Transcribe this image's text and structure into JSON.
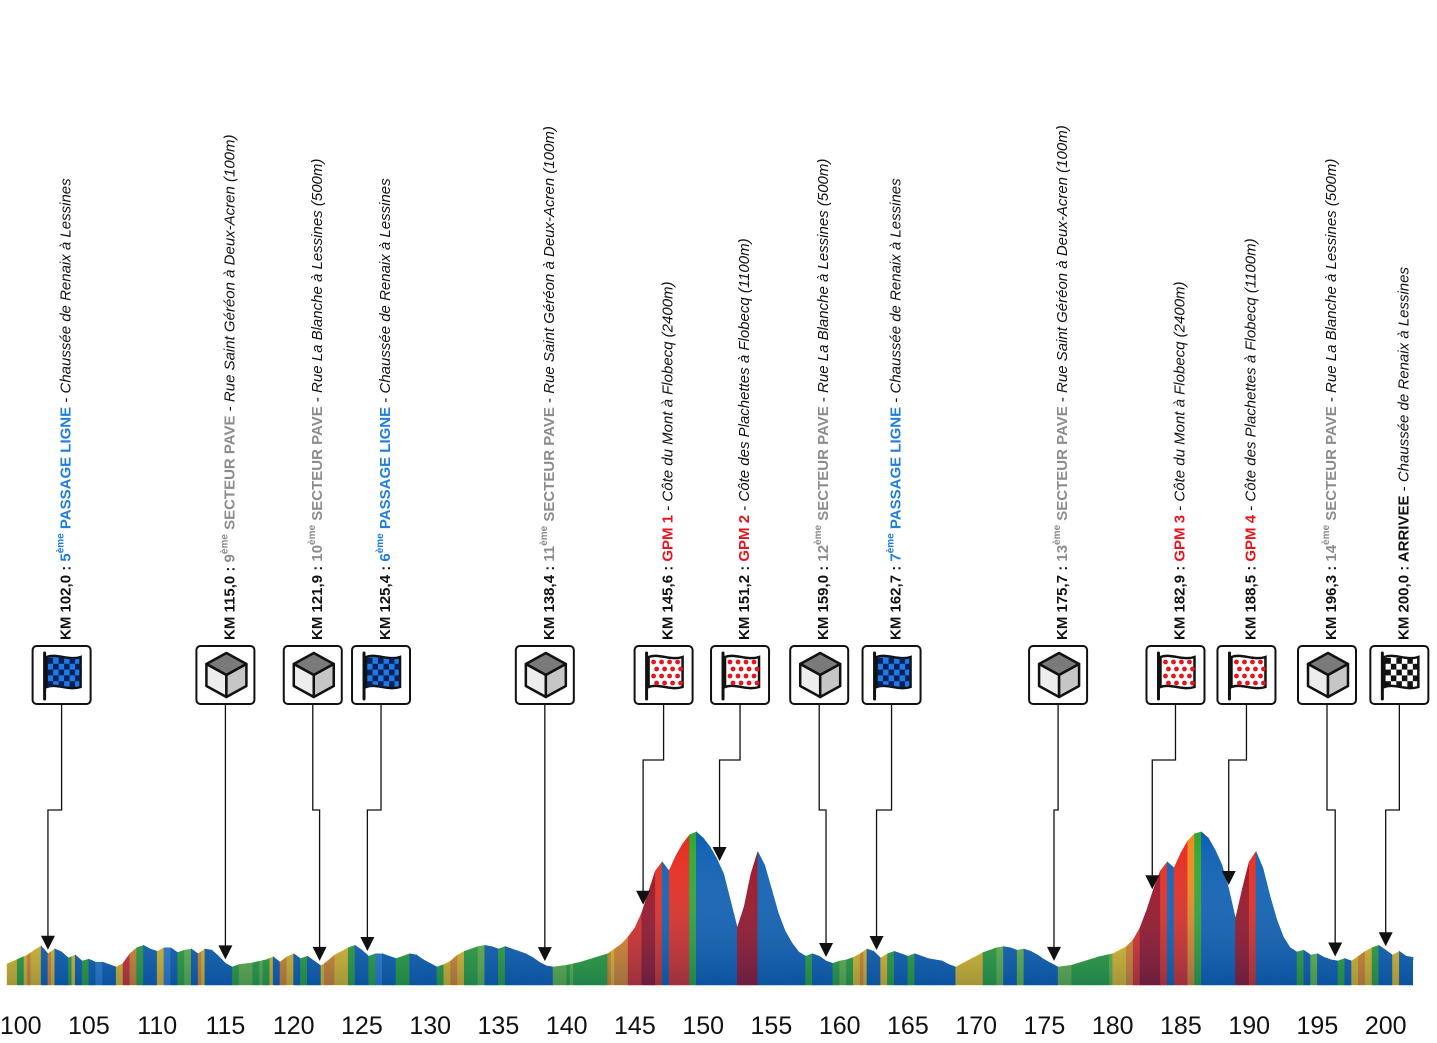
{
  "chart_data": {
    "type": "area",
    "title": "",
    "xlabel": "",
    "ylabel": "",
    "xlim": [
      99,
      202
    ],
    "x_ticks": [
      100,
      105,
      110,
      115,
      120,
      125,
      130,
      135,
      140,
      145,
      150,
      155,
      160,
      165,
      170,
      175,
      180,
      185,
      190,
      195,
      200
    ],
    "profile_note": "elevation shown by a coloured gradient profile (colours = gradient), no vertical axis",
    "profile": [
      [
        99.0,
        0.35
      ],
      [
        99.5,
        0.4
      ],
      [
        100.0,
        0.45
      ],
      [
        100.5,
        0.5
      ],
      [
        101.0,
        0.58
      ],
      [
        101.5,
        0.65
      ],
      [
        102.0,
        0.52
      ],
      [
        102.5,
        0.6
      ],
      [
        103.0,
        0.55
      ],
      [
        103.5,
        0.45
      ],
      [
        104.0,
        0.5
      ],
      [
        104.5,
        0.4
      ],
      [
        105.0,
        0.43
      ],
      [
        105.5,
        0.38
      ],
      [
        106.0,
        0.38
      ],
      [
        106.5,
        0.34
      ],
      [
        107.0,
        0.3
      ],
      [
        107.5,
        0.36
      ],
      [
        108.0,
        0.52
      ],
      [
        108.5,
        0.62
      ],
      [
        109.0,
        0.66
      ],
      [
        109.5,
        0.6
      ],
      [
        110.0,
        0.56
      ],
      [
        110.5,
        0.62
      ],
      [
        111.0,
        0.62
      ],
      [
        111.5,
        0.54
      ],
      [
        112.0,
        0.58
      ],
      [
        112.5,
        0.6
      ],
      [
        113.0,
        0.52
      ],
      [
        113.5,
        0.6
      ],
      [
        114.0,
        0.58
      ],
      [
        114.5,
        0.48
      ],
      [
        115.0,
        0.36
      ],
      [
        115.5,
        0.3
      ],
      [
        116.0,
        0.34
      ],
      [
        117.0,
        0.37
      ],
      [
        118.0,
        0.42
      ],
      [
        118.5,
        0.47
      ],
      [
        119.0,
        0.38
      ],
      [
        119.5,
        0.47
      ],
      [
        120.0,
        0.52
      ],
      [
        120.5,
        0.44
      ],
      [
        121.0,
        0.48
      ],
      [
        121.5,
        0.4
      ],
      [
        122.0,
        0.32
      ],
      [
        122.5,
        0.4
      ],
      [
        123.0,
        0.5
      ],
      [
        123.5,
        0.56
      ],
      [
        124.0,
        0.62
      ],
      [
        124.5,
        0.66
      ],
      [
        125.0,
        0.58
      ],
      [
        125.5,
        0.48
      ],
      [
        126.0,
        0.52
      ],
      [
        126.5,
        0.52
      ],
      [
        127.0,
        0.48
      ],
      [
        127.5,
        0.44
      ],
      [
        128.0,
        0.48
      ],
      [
        128.5,
        0.52
      ],
      [
        129.0,
        0.5
      ],
      [
        129.5,
        0.42
      ],
      [
        130.0,
        0.36
      ],
      [
        130.5,
        0.3
      ],
      [
        131.0,
        0.34
      ],
      [
        131.5,
        0.4
      ],
      [
        132.0,
        0.5
      ],
      [
        132.5,
        0.56
      ],
      [
        133.0,
        0.6
      ],
      [
        133.5,
        0.64
      ],
      [
        134.0,
        0.66
      ],
      [
        134.5,
        0.64
      ],
      [
        135.0,
        0.6
      ],
      [
        135.5,
        0.64
      ],
      [
        136.0,
        0.6
      ],
      [
        136.5,
        0.56
      ],
      [
        137.0,
        0.52
      ],
      [
        137.5,
        0.46
      ],
      [
        138.0,
        0.38
      ],
      [
        138.5,
        0.32
      ],
      [
        139.0,
        0.3
      ],
      [
        140.0,
        0.33
      ],
      [
        141.0,
        0.38
      ],
      [
        142.0,
        0.45
      ],
      [
        143.0,
        0.52
      ],
      [
        143.5,
        0.6
      ],
      [
        144.0,
        0.68
      ],
      [
        144.5,
        0.8
      ],
      [
        145.0,
        0.95
      ],
      [
        145.5,
        1.2
      ],
      [
        146.0,
        1.55
      ],
      [
        146.5,
        1.9
      ],
      [
        147.0,
        2.05
      ],
      [
        147.5,
        1.9
      ],
      [
        148.0,
        2.15
      ],
      [
        148.5,
        2.35
      ],
      [
        149.0,
        2.5
      ],
      [
        149.5,
        2.55
      ],
      [
        150.0,
        2.45
      ],
      [
        150.5,
        2.3
      ],
      [
        151.0,
        2.1
      ],
      [
        151.5,
        1.85
      ],
      [
        152.0,
        1.4
      ],
      [
        152.5,
        0.95
      ],
      [
        153.0,
        1.3
      ],
      [
        153.5,
        1.85
      ],
      [
        154.0,
        2.22
      ],
      [
        154.5,
        2.0
      ],
      [
        155.0,
        1.6
      ],
      [
        155.5,
        1.2
      ],
      [
        156.0,
        0.9
      ],
      [
        156.5,
        0.7
      ],
      [
        157.0,
        0.55
      ],
      [
        157.5,
        0.48
      ],
      [
        158.0,
        0.52
      ],
      [
        158.5,
        0.48
      ],
      [
        159.0,
        0.4
      ],
      [
        159.5,
        0.36
      ],
      [
        160.0,
        0.4
      ],
      [
        160.5,
        0.42
      ],
      [
        161.0,
        0.46
      ],
      [
        161.5,
        0.52
      ],
      [
        162.0,
        0.6
      ],
      [
        162.5,
        0.56
      ],
      [
        163.0,
        0.45
      ],
      [
        163.5,
        0.52
      ],
      [
        164.0,
        0.56
      ],
      [
        164.5,
        0.52
      ],
      [
        165.0,
        0.48
      ],
      [
        165.5,
        0.52
      ],
      [
        166.0,
        0.48
      ],
      [
        166.5,
        0.44
      ],
      [
        167.0,
        0.42
      ],
      [
        167.5,
        0.4
      ],
      [
        168.0,
        0.34
      ],
      [
        168.5,
        0.3
      ],
      [
        169.0,
        0.36
      ],
      [
        169.5,
        0.42
      ],
      [
        170.0,
        0.48
      ],
      [
        170.5,
        0.54
      ],
      [
        171.0,
        0.58
      ],
      [
        171.5,
        0.62
      ],
      [
        172.0,
        0.64
      ],
      [
        172.5,
        0.62
      ],
      [
        173.0,
        0.58
      ],
      [
        173.5,
        0.6
      ],
      [
        174.0,
        0.56
      ],
      [
        174.5,
        0.5
      ],
      [
        175.0,
        0.42
      ],
      [
        175.5,
        0.36
      ],
      [
        176.0,
        0.3
      ],
      [
        177.0,
        0.33
      ],
      [
        178.0,
        0.4
      ],
      [
        179.0,
        0.47
      ],
      [
        180.0,
        0.52
      ],
      [
        180.5,
        0.58
      ],
      [
        181.0,
        0.64
      ],
      [
        181.5,
        0.75
      ],
      [
        182.0,
        0.95
      ],
      [
        182.5,
        1.25
      ],
      [
        183.0,
        1.6
      ],
      [
        183.5,
        1.9
      ],
      [
        184.0,
        2.05
      ],
      [
        184.5,
        1.95
      ],
      [
        185.0,
        2.2
      ],
      [
        185.5,
        2.4
      ],
      [
        186.0,
        2.52
      ],
      [
        186.5,
        2.55
      ],
      [
        187.0,
        2.45
      ],
      [
        187.5,
        2.25
      ],
      [
        188.0,
        2.0
      ],
      [
        188.5,
        1.6
      ],
      [
        189.0,
        1.1
      ],
      [
        189.5,
        1.6
      ],
      [
        190.0,
        2.05
      ],
      [
        190.5,
        2.22
      ],
      [
        191.0,
        1.95
      ],
      [
        191.5,
        1.5
      ],
      [
        192.0,
        1.1
      ],
      [
        192.5,
        0.8
      ],
      [
        193.0,
        0.62
      ],
      [
        193.5,
        0.55
      ],
      [
        194.0,
        0.58
      ],
      [
        194.5,
        0.5
      ],
      [
        195.0,
        0.52
      ],
      [
        195.5,
        0.46
      ],
      [
        196.0,
        0.42
      ],
      [
        196.5,
        0.4
      ],
      [
        197.0,
        0.44
      ],
      [
        197.5,
        0.4
      ],
      [
        198.0,
        0.48
      ],
      [
        198.5,
        0.56
      ],
      [
        199.0,
        0.62
      ],
      [
        199.5,
        0.66
      ],
      [
        200.0,
        0.58
      ],
      [
        200.5,
        0.5
      ],
      [
        201.0,
        0.56
      ],
      [
        201.5,
        0.48
      ],
      [
        202.0,
        0.46
      ]
    ],
    "gradient_colors": [
      "#0d5fb3",
      "#2e7fd1",
      "#6bbf3a",
      "#2ea82e",
      "#f5c518",
      "#f08a1c",
      "#e8291c",
      "#9e0d1e"
    ],
    "annotations": [
      {
        "x": 102.0,
        "box_x": 103.0,
        "kind": "line",
        "km": "KM 102,0 :",
        "num": "5",
        "sup": "ème",
        "name": "PASSAGE LIGNE",
        "place": "Chaussée de Renaix à Lessines",
        "color": "#1e7de0",
        "icon": "blue-checkered-flag-icon"
      },
      {
        "x": 115.0,
        "box_x": 115.0,
        "kind": "cobble",
        "km": "KM 115,0 :",
        "num": "9",
        "sup": "ème",
        "name": "SECTEUR PAVE",
        "place": "Rue Saint Géréon à Deux-Acren (100m)",
        "color": "#8c8c8c",
        "icon": "cobblestone-cube-icon"
      },
      {
        "x": 121.9,
        "box_x": 121.4,
        "kind": "cobble",
        "km": "KM 121,9 :",
        "num": "10",
        "sup": "ème",
        "name": "SECTEUR PAVE",
        "place": "Rue La Blanche à Lessines (500m)",
        "color": "#8c8c8c",
        "icon": "cobblestone-cube-icon"
      },
      {
        "x": 125.4,
        "box_x": 126.4,
        "kind": "line",
        "km": "KM 125,4 :",
        "num": "6",
        "sup": "ème",
        "name": "PASSAGE LIGNE",
        "place": "Chaussée de Renaix à Lessines",
        "color": "#1e7de0",
        "icon": "blue-checkered-flag-icon"
      },
      {
        "x": 138.4,
        "box_x": 138.4,
        "kind": "cobble",
        "km": "KM 138,4 :",
        "num": "11",
        "sup": "ème",
        "name": "SECTEUR PAVE",
        "place": "Rue Saint Géréon à Deux-Acren (100m)",
        "color": "#8c8c8c",
        "icon": "cobblestone-cube-icon"
      },
      {
        "x": 145.6,
        "box_x": 147.1,
        "kind": "gpm",
        "km": "KM 145,6 :",
        "num": "",
        "sup": "",
        "name": "GPM 1",
        "place": "Côte du Mont à Flobecq (2400m)",
        "color": "#e8141c",
        "icon": "polka-dot-flag-icon"
      },
      {
        "x": 151.2,
        "box_x": 152.7,
        "kind": "gpm",
        "km": "KM 151,2 :",
        "num": "",
        "sup": "",
        "name": "GPM 2",
        "place": "Côte des Plachettes à Flobecq (1100m)",
        "color": "#e8141c",
        "icon": "polka-dot-flag-icon"
      },
      {
        "x": 159.0,
        "box_x": 158.5,
        "kind": "cobble",
        "km": "KM 159,0 :",
        "num": "12",
        "sup": "ème",
        "name": "SECTEUR PAVE",
        "place": "Rue La Blanche à Lessines (500m)",
        "color": "#8c8c8c",
        "icon": "cobblestone-cube-icon"
      },
      {
        "x": 162.7,
        "box_x": 163.8,
        "kind": "line",
        "km": "KM 162,7 :",
        "num": "7",
        "sup": "ème",
        "name": "PASSAGE LIGNE",
        "place": "Chaussée de Renaix à Lessines",
        "color": "#1e7de0",
        "icon": "blue-checkered-flag-icon"
      },
      {
        "x": 175.7,
        "box_x": 176.0,
        "kind": "cobble",
        "km": "KM 175,7 :",
        "num": "13",
        "sup": "ème",
        "name": "SECTEUR PAVE",
        "place": "Rue Saint Géréon à Deux-Acren (100m)",
        "color": "#8c8c8c",
        "icon": "cobblestone-cube-icon"
      },
      {
        "x": 182.9,
        "box_x": 184.6,
        "kind": "gpm",
        "km": "KM 182,9 :",
        "num": "",
        "sup": "",
        "name": "GPM 3",
        "place": "Côte du Mont à Flobecq (2400m)",
        "color": "#e8141c",
        "icon": "polka-dot-flag-icon"
      },
      {
        "x": 188.5,
        "box_x": 189.8,
        "kind": "gpm",
        "km": "KM 188,5 :",
        "num": "",
        "sup": "",
        "name": "GPM 4",
        "place": "Côte des Plachettes à Flobecq (1100m)",
        "color": "#e8141c",
        "icon": "polka-dot-flag-icon"
      },
      {
        "x": 196.3,
        "box_x": 195.7,
        "kind": "cobble",
        "km": "KM 196,3 :",
        "num": "14",
        "sup": "ème",
        "name": "SECTEUR PAVE",
        "place": "Rue La Blanche à Lessines (500m)",
        "color": "#8c8c8c",
        "icon": "cobblestone-cube-icon"
      },
      {
        "x": 200.0,
        "box_x": 201.0,
        "kind": "finish",
        "km": "KM 200,0 :",
        "num": "",
        "sup": "",
        "name": "ARRIVEE",
        "place": "Chaussée de Renaix à Lessines",
        "color": "#111111",
        "icon": "checkered-flag-icon"
      }
    ]
  }
}
